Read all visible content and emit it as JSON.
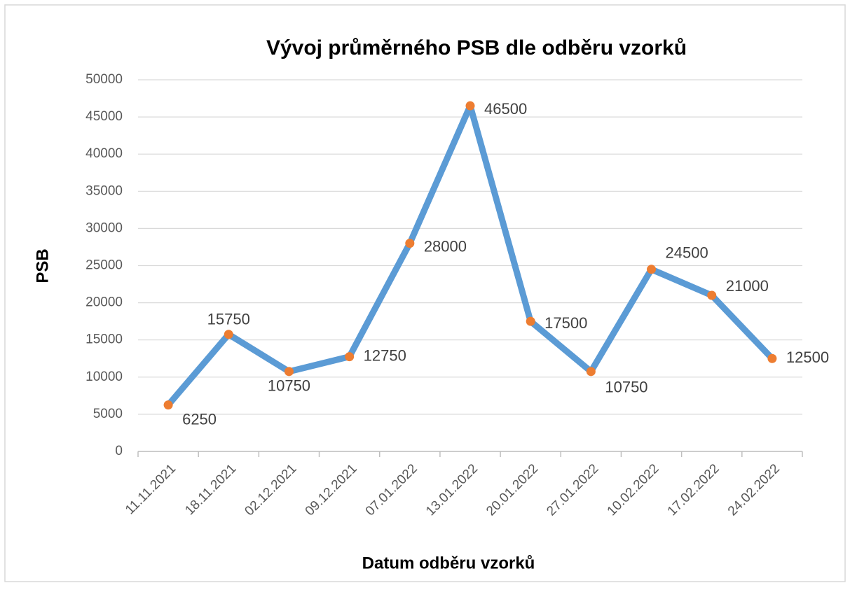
{
  "chart_data": {
    "type": "line",
    "title": "Vývoj průměrného PSB dle odběru vzorků",
    "x_label": "Datum odběru vzorků",
    "y_label": "PSB",
    "categories": [
      "11.11.2021",
      "18.11.2021",
      "02.12.2021",
      "09.12.2021",
      "07.01.2022",
      "13.01.2022",
      "20.01.2022",
      "27.01.2022",
      "10.02.2022",
      "17.02.2022",
      "24.02.2022"
    ],
    "series": [
      {
        "name": "PSB",
        "color": "#5b9bd5",
        "marker_color": "#ed7d31",
        "values": [
          6250,
          15750,
          10750,
          12750,
          28000,
          46500,
          17500,
          10750,
          24500,
          21000,
          12500
        ]
      }
    ],
    "ylim": [
      0,
      50000
    ],
    "yticks": [
      0,
      5000,
      10000,
      15000,
      20000,
      25000,
      30000,
      35000,
      40000,
      45000,
      50000
    ],
    "grid": true
  }
}
